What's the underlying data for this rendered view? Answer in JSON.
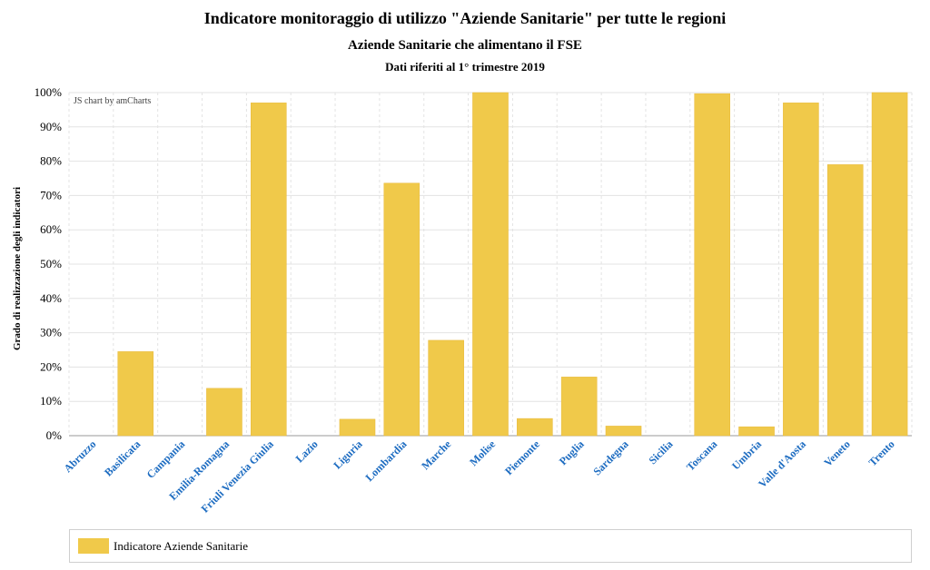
{
  "titles": {
    "main": "Indicatore monitoraggio di utilizzo \"Aziende Sanitarie\" per tutte le regioni",
    "subtitle": "Aziende Sanitarie che alimentano il FSE",
    "period": "Dati riferiti al 1° trimestre 2019"
  },
  "credit": "JS chart by amCharts",
  "colors": {
    "bar": "#f0c94a",
    "grid": "#e3e3e3",
    "category_label": "#1d6cc1"
  },
  "legend": {
    "label": "Indicatore Aziende Sanitarie"
  },
  "chart_data": {
    "type": "bar",
    "title": "Indicatore monitoraggio di utilizzo \"Aziende Sanitarie\" per tutte le regioni",
    "xlabel": "",
    "ylabel": "Grado di realizzazione degli indicatori",
    "ylim": [
      0,
      100
    ],
    "yticks": [
      "0%",
      "10%",
      "20%",
      "30%",
      "40%",
      "50%",
      "60%",
      "70%",
      "80%",
      "90%",
      "100%"
    ],
    "grid": true,
    "legend_position": "bottom",
    "categories": [
      "Abruzzo",
      "Basilicata",
      "Campania",
      "Emilia-Romagna",
      "Friuli Venezia Giulia",
      "Lazio",
      "Liguria",
      "Lombardia",
      "Marche",
      "Molise",
      "Piemonte",
      "Puglia",
      "Sardegna",
      "Sicilia",
      "Toscana",
      "Umbria",
      "Valle d'Aosta",
      "Veneto",
      "Trento"
    ],
    "series": [
      {
        "name": "Indicatore Aziende Sanitarie",
        "values": [
          0,
          24.5,
          0,
          13.8,
          97,
          0,
          4.8,
          73.6,
          27.8,
          100,
          5,
          17.1,
          2.8,
          0,
          99.7,
          2.6,
          97,
          79,
          100
        ]
      }
    ]
  }
}
